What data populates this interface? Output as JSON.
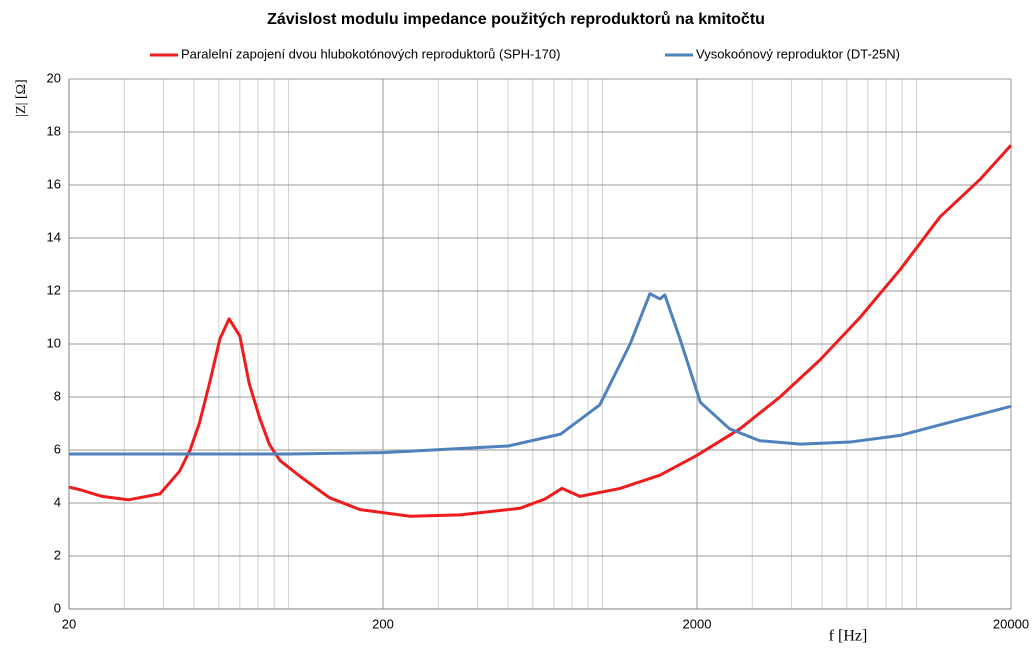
{
  "chart_data": {
    "type": "line",
    "title": "Závislost modulu impedance použitých reproduktorů na kmitočtu",
    "y_label": "|Z| [Ω]",
    "x_label": "f [Hz]",
    "xscale": "log",
    "xlim": [
      20,
      20000
    ],
    "xticks": [
      20,
      200,
      2000,
      20000
    ],
    "xminorticks": [
      30,
      40,
      50,
      60,
      70,
      80,
      90,
      100,
      300,
      400,
      500,
      600,
      700,
      800,
      900,
      1000,
      3000,
      4000,
      5000,
      6000,
      7000,
      8000,
      9000,
      10000
    ],
    "ylim": [
      0,
      20
    ],
    "yticks": [
      0,
      2,
      4,
      6,
      8,
      10,
      12,
      14,
      16,
      18,
      20
    ],
    "grid": true,
    "legend": "top",
    "series": [
      {
        "name": "Paralelní zapojení dvou hlubokotónových reproduktorů (SPH-170)",
        "color": "#ee1c1c",
        "x": [
          20,
          21.7,
          25.5,
          31,
          39,
          45,
          48.6,
          52,
          56,
          60.5,
          64.7,
          70,
          75,
          81,
          87,
          94,
          109,
          135,
          169,
          244,
          352,
          546,
          656,
          743,
          848,
          1138,
          1524,
          2000,
          2741,
          3674,
          4930,
          6610,
          8860,
          11890,
          15900,
          20000
        ],
        "values": [
          4.6,
          4.5,
          4.25,
          4.12,
          4.35,
          5.2,
          6.0,
          7.0,
          8.5,
          10.2,
          10.95,
          10.3,
          8.5,
          7.2,
          6.2,
          5.6,
          5.0,
          4.2,
          3.75,
          3.5,
          3.55,
          3.8,
          4.15,
          4.55,
          4.25,
          4.55,
          5.05,
          5.8,
          6.8,
          8.0,
          9.4,
          11.0,
          12.8,
          14.8,
          16.2,
          17.5
        ]
      },
      {
        "name": "Vysokoónový reproduktor (DT-25N)",
        "color": "#4f81bd",
        "x": [
          20,
          100,
          200,
          500,
          736,
          980,
          1225,
          1416,
          1524,
          1580,
          1765,
          2050,
          2540,
          3170,
          4270,
          6140,
          8860,
          12800,
          20000
        ],
        "values": [
          5.85,
          5.85,
          5.9,
          6.15,
          6.6,
          7.7,
          10.0,
          11.9,
          11.7,
          11.85,
          10.2,
          7.8,
          6.8,
          6.35,
          6.22,
          6.3,
          6.55,
          7.05,
          7.65
        ]
      }
    ]
  }
}
